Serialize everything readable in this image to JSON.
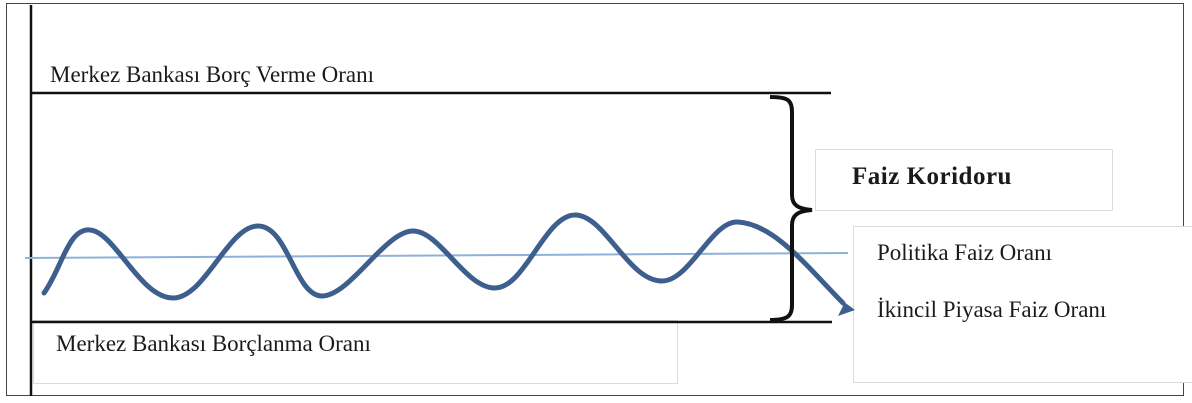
{
  "labels": {
    "lending_rate": "Merkez Bankası Borç Verme Oranı",
    "borrowing_rate": "Merkez Bankası Borçlanma Oranı",
    "corridor": "Faiz Koridoru",
    "policy_rate": "Politika Faiz Oranı",
    "secondary_rate": "İkincil Piyasa Faiz Oranı"
  },
  "colors": {
    "wave": "#3d5f8d",
    "policy_line": "#8fb1d8",
    "lines": "#111111"
  }
}
